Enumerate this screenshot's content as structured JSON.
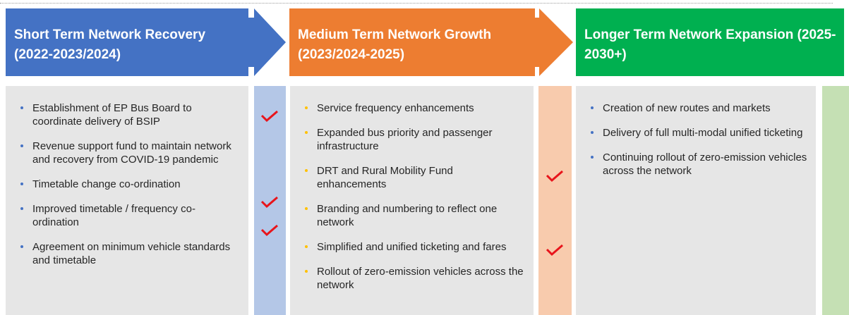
{
  "columns": [
    {
      "title": "Short Term Network Recovery (2022-2023/2024)",
      "items": [
        "Establishment of EP Bus Board to coordinate delivery of BSIP",
        "Revenue support fund to maintain network and recovery from COVID-19 pandemic",
        "Timetable change co-ordination",
        "Improved timetable / frequency co-ordination",
        "Agreement on minimum vehicle standards and timetable"
      ]
    },
    {
      "title": "Medium Term Network Growth (2023/2024-2025)",
      "items": [
        "Service frequency enhancements",
        "Expanded bus priority and passenger infrastructure",
        "DRT and Rural Mobility Fund enhancements",
        "Branding and numbering to reflect one network",
        "Simplified and unified ticketing and fares",
        "Rollout of zero-emission vehicles across the network"
      ]
    },
    {
      "title": "Longer Term Network Expansion (2025-2030+)",
      "items": [
        "Creation of new routes and markets",
        "Delivery of full multi-modal unified ticketing",
        "Continuing rollout of zero-emission vehicles across the network"
      ]
    }
  ]
}
